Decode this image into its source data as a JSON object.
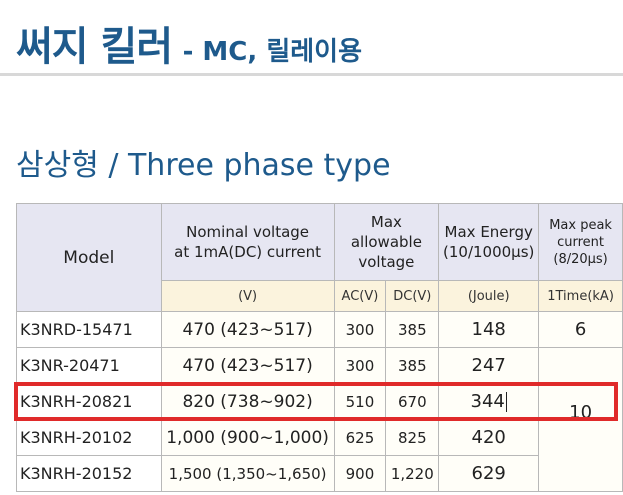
{
  "header": {
    "title": "써지 킬러",
    "subtitle": "- MC, 릴레이용"
  },
  "section_title": "삼상형 / Three phase type",
  "table": {
    "headers": {
      "model": "Model",
      "nominal_line1": "Nominal voltage",
      "nominal_line2": "at 1mA(DC) current",
      "max_allow_line1": "Max",
      "max_allow_line2": "allowable",
      "max_allow_line3": "voltage",
      "max_energy_line1": "Max Energy",
      "max_energy_line2": "(10/1000µs)",
      "max_peak_line1": "Max peak",
      "max_peak_line2": "current",
      "max_peak_line3": "(8/20µs)"
    },
    "units": {
      "nominal": "(V)",
      "ac": "AC(V)",
      "dc": "DC(V)",
      "energy": "(Joule)",
      "peak": "1Time(kA)"
    },
    "rows": [
      {
        "model": "K3NRD-15471",
        "nominal": "470 (423~517)",
        "ac": "300",
        "dc": "385",
        "energy": "148"
      },
      {
        "model": "K3NR-20471",
        "nominal": "470 (423~517)",
        "ac": "300",
        "dc": "385",
        "energy": "247"
      },
      {
        "model": "K3NRH-20821",
        "nominal": "820 (738~902)",
        "ac": "510",
        "dc": "670",
        "energy": "344"
      },
      {
        "model": "K3NRH-20102",
        "nominal": "1,000 (900~1,000)",
        "ac": "625",
        "dc": "825",
        "energy": "420"
      },
      {
        "model": "K3NRH-20152",
        "nominal": "1,500 (1,350~1,650)",
        "ac": "900",
        "dc": "1,220",
        "energy": "629"
      }
    ],
    "peak_values": {
      "first": "6",
      "merged": "10"
    }
  }
}
